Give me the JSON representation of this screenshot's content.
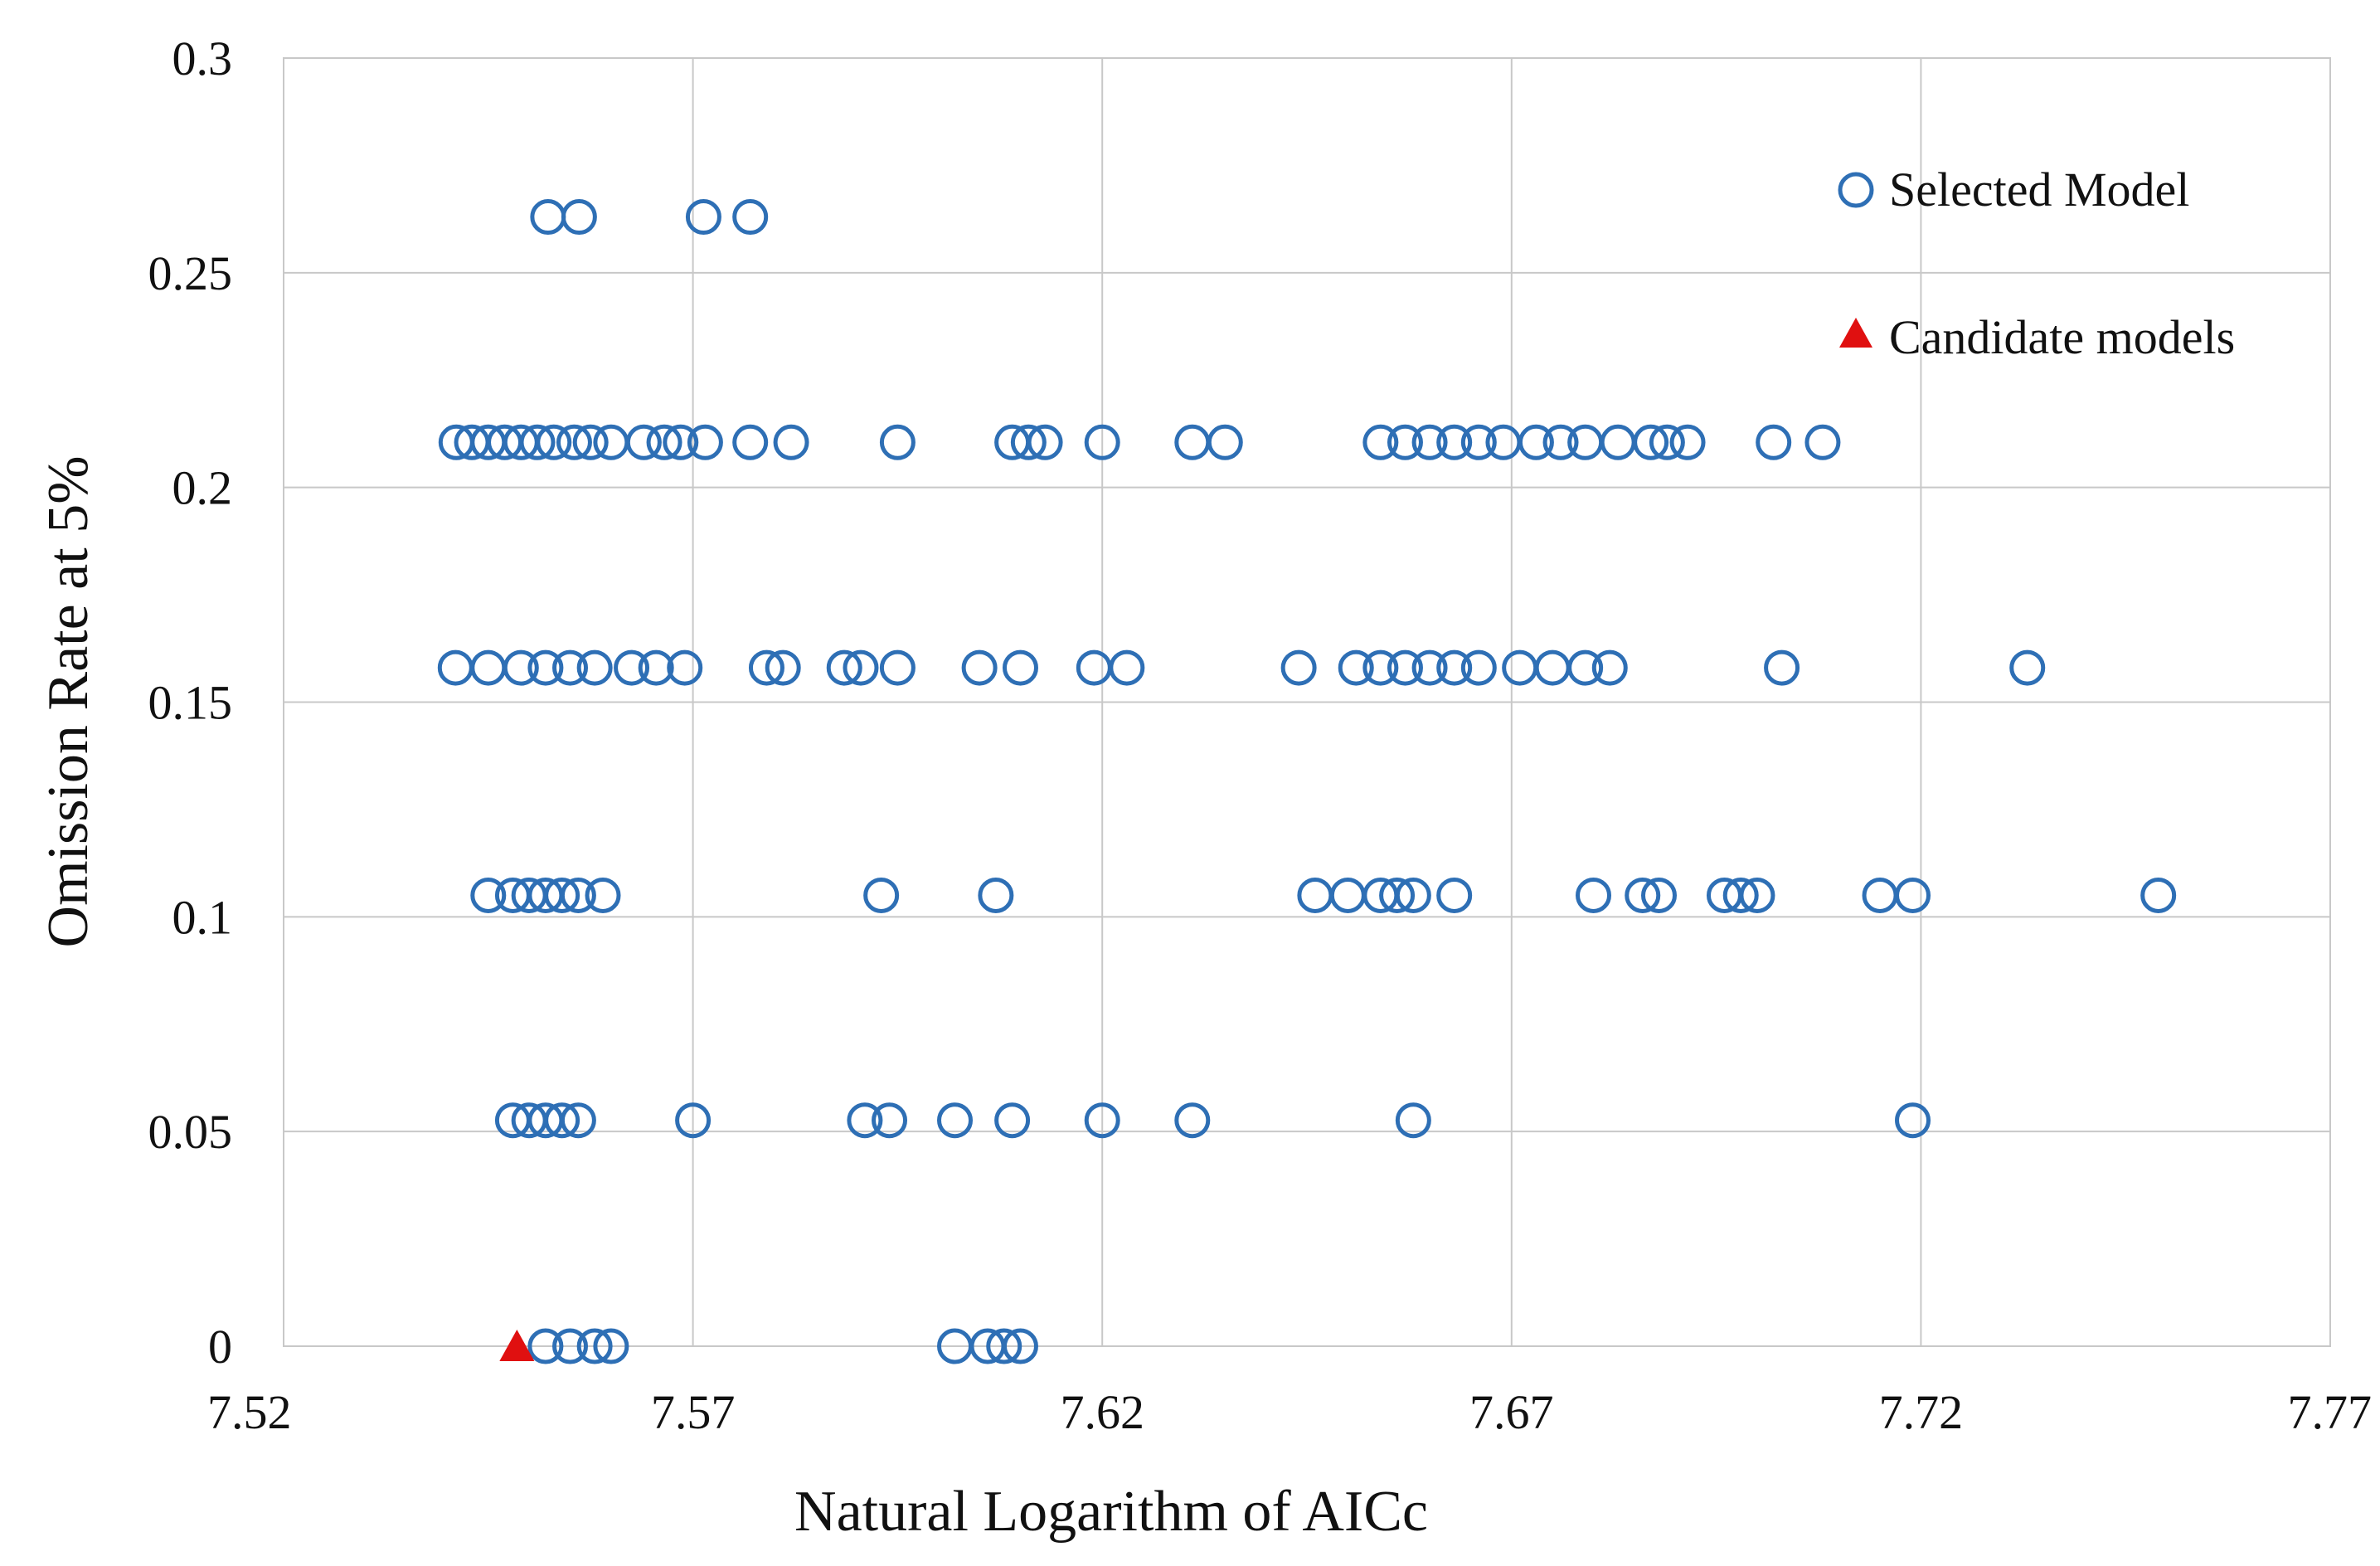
{
  "chart_data": {
    "type": "scatter",
    "title": "",
    "xlabel": "Natural Logarithm of AICc",
    "ylabel": "Omission Rate at 5%",
    "xlim": [
      7.52,
      7.77
    ],
    "ylim": [
      0,
      0.3
    ],
    "x_ticks": [
      7.52,
      7.57,
      7.62,
      7.67,
      7.72,
      7.77
    ],
    "x_tick_labels": [
      "7.52",
      "7.57",
      "7.62",
      "7.67",
      "7.72",
      "7.77"
    ],
    "y_ticks": [
      0,
      0.05,
      0.1,
      0.15,
      0.2,
      0.25,
      0.3
    ],
    "y_tick_labels": [
      "0",
      "0.05",
      "0.1",
      "0.15",
      "0.2",
      "0.25",
      "0.3"
    ],
    "grid": true,
    "legend_position": "top-right",
    "colors": {
      "selected": "#2e6fb5",
      "candidate": "#e01010",
      "grid": "#c8c8c8"
    },
    "series": [
      {
        "name": "Selected Model",
        "marker": "open-circle",
        "points": [
          {
            "x": 7.5523,
            "y": 0.263
          },
          {
            "x": 7.5561,
            "y": 0.263
          },
          {
            "x": 7.5713,
            "y": 0.263
          },
          {
            "x": 7.577,
            "y": 0.263
          },
          {
            "x": 7.5411,
            "y": 0.2105
          },
          {
            "x": 7.543,
            "y": 0.2105
          },
          {
            "x": 7.545,
            "y": 0.2105
          },
          {
            "x": 7.547,
            "y": 0.2105
          },
          {
            "x": 7.549,
            "y": 0.2105
          },
          {
            "x": 7.551,
            "y": 0.2105
          },
          {
            "x": 7.553,
            "y": 0.2105
          },
          {
            "x": 7.5555,
            "y": 0.2105
          },
          {
            "x": 7.5575,
            "y": 0.2105
          },
          {
            "x": 7.56,
            "y": 0.2105
          },
          {
            "x": 7.564,
            "y": 0.2105
          },
          {
            "x": 7.5665,
            "y": 0.2105
          },
          {
            "x": 7.5685,
            "y": 0.2105
          },
          {
            "x": 7.5715,
            "y": 0.2105
          },
          {
            "x": 7.577,
            "y": 0.2105
          },
          {
            "x": 7.582,
            "y": 0.2105
          },
          {
            "x": 7.595,
            "y": 0.2105
          },
          {
            "x": 7.609,
            "y": 0.2105
          },
          {
            "x": 7.611,
            "y": 0.2105
          },
          {
            "x": 7.613,
            "y": 0.2105
          },
          {
            "x": 7.62,
            "y": 0.2105
          },
          {
            "x": 7.631,
            "y": 0.2105
          },
          {
            "x": 7.635,
            "y": 0.2105
          },
          {
            "x": 7.654,
            "y": 0.2105
          },
          {
            "x": 7.657,
            "y": 0.2105
          },
          {
            "x": 7.66,
            "y": 0.2105
          },
          {
            "x": 7.663,
            "y": 0.2105
          },
          {
            "x": 7.666,
            "y": 0.2105
          },
          {
            "x": 7.669,
            "y": 0.2105
          },
          {
            "x": 7.673,
            "y": 0.2105
          },
          {
            "x": 7.676,
            "y": 0.2105
          },
          {
            "x": 7.679,
            "y": 0.2105
          },
          {
            "x": 7.683,
            "y": 0.2105
          },
          {
            "x": 7.687,
            "y": 0.2105
          },
          {
            "x": 7.689,
            "y": 0.2105
          },
          {
            "x": 7.6915,
            "y": 0.2105
          },
          {
            "x": 7.702,
            "y": 0.2105
          },
          {
            "x": 7.708,
            "y": 0.2105
          },
          {
            "x": 7.541,
            "y": 0.158
          },
          {
            "x": 7.545,
            "y": 0.158
          },
          {
            "x": 7.549,
            "y": 0.158
          },
          {
            "x": 7.552,
            "y": 0.158
          },
          {
            "x": 7.555,
            "y": 0.158
          },
          {
            "x": 7.558,
            "y": 0.158
          },
          {
            "x": 7.5625,
            "y": 0.158
          },
          {
            "x": 7.5655,
            "y": 0.158
          },
          {
            "x": 7.569,
            "y": 0.158
          },
          {
            "x": 7.579,
            "y": 0.158
          },
          {
            "x": 7.581,
            "y": 0.158
          },
          {
            "x": 7.5885,
            "y": 0.158
          },
          {
            "x": 7.5905,
            "y": 0.158
          },
          {
            "x": 7.595,
            "y": 0.158
          },
          {
            "x": 7.605,
            "y": 0.158
          },
          {
            "x": 7.61,
            "y": 0.158
          },
          {
            "x": 7.619,
            "y": 0.158
          },
          {
            "x": 7.623,
            "y": 0.158
          },
          {
            "x": 7.644,
            "y": 0.158
          },
          {
            "x": 7.651,
            "y": 0.158
          },
          {
            "x": 7.654,
            "y": 0.158
          },
          {
            "x": 7.657,
            "y": 0.158
          },
          {
            "x": 7.66,
            "y": 0.158
          },
          {
            "x": 7.663,
            "y": 0.158
          },
          {
            "x": 7.666,
            "y": 0.158
          },
          {
            "x": 7.671,
            "y": 0.158
          },
          {
            "x": 7.675,
            "y": 0.158
          },
          {
            "x": 7.679,
            "y": 0.158
          },
          {
            "x": 7.682,
            "y": 0.158
          },
          {
            "x": 7.703,
            "y": 0.158
          },
          {
            "x": 7.733,
            "y": 0.158
          },
          {
            "x": 7.545,
            "y": 0.105
          },
          {
            "x": 7.548,
            "y": 0.105
          },
          {
            "x": 7.55,
            "y": 0.105
          },
          {
            "x": 7.552,
            "y": 0.105
          },
          {
            "x": 7.554,
            "y": 0.105
          },
          {
            "x": 7.556,
            "y": 0.105
          },
          {
            "x": 7.559,
            "y": 0.105
          },
          {
            "x": 7.593,
            "y": 0.105
          },
          {
            "x": 7.607,
            "y": 0.105
          },
          {
            "x": 7.646,
            "y": 0.105
          },
          {
            "x": 7.65,
            "y": 0.105
          },
          {
            "x": 7.654,
            "y": 0.105
          },
          {
            "x": 7.656,
            "y": 0.105
          },
          {
            "x": 7.658,
            "y": 0.105
          },
          {
            "x": 7.663,
            "y": 0.105
          },
          {
            "x": 7.68,
            "y": 0.105
          },
          {
            "x": 7.686,
            "y": 0.105
          },
          {
            "x": 7.688,
            "y": 0.105
          },
          {
            "x": 7.696,
            "y": 0.105
          },
          {
            "x": 7.698,
            "y": 0.105
          },
          {
            "x": 7.7,
            "y": 0.105
          },
          {
            "x": 7.715,
            "y": 0.105
          },
          {
            "x": 7.719,
            "y": 0.105
          },
          {
            "x": 7.749,
            "y": 0.105
          },
          {
            "x": 7.548,
            "y": 0.0526
          },
          {
            "x": 7.55,
            "y": 0.0526
          },
          {
            "x": 7.552,
            "y": 0.0526
          },
          {
            "x": 7.554,
            "y": 0.0526
          },
          {
            "x": 7.556,
            "y": 0.0526
          },
          {
            "x": 7.57,
            "y": 0.0526
          },
          {
            "x": 7.591,
            "y": 0.0526
          },
          {
            "x": 7.594,
            "y": 0.0526
          },
          {
            "x": 7.602,
            "y": 0.0526
          },
          {
            "x": 7.609,
            "y": 0.0526
          },
          {
            "x": 7.62,
            "y": 0.0526
          },
          {
            "x": 7.631,
            "y": 0.0526
          },
          {
            "x": 7.658,
            "y": 0.0526
          },
          {
            "x": 7.719,
            "y": 0.0526
          },
          {
            "x": 7.552,
            "y": 0
          },
          {
            "x": 7.555,
            "y": 0
          },
          {
            "x": 7.558,
            "y": 0
          },
          {
            "x": 7.56,
            "y": 0
          },
          {
            "x": 7.602,
            "y": 0
          },
          {
            "x": 7.606,
            "y": 0
          },
          {
            "x": 7.608,
            "y": 0
          },
          {
            "x": 7.61,
            "y": 0
          }
        ]
      },
      {
        "name": "Candidate models",
        "marker": "filled-triangle",
        "points": [
          {
            "x": 7.5485,
            "y": 0
          }
        ]
      }
    ]
  }
}
